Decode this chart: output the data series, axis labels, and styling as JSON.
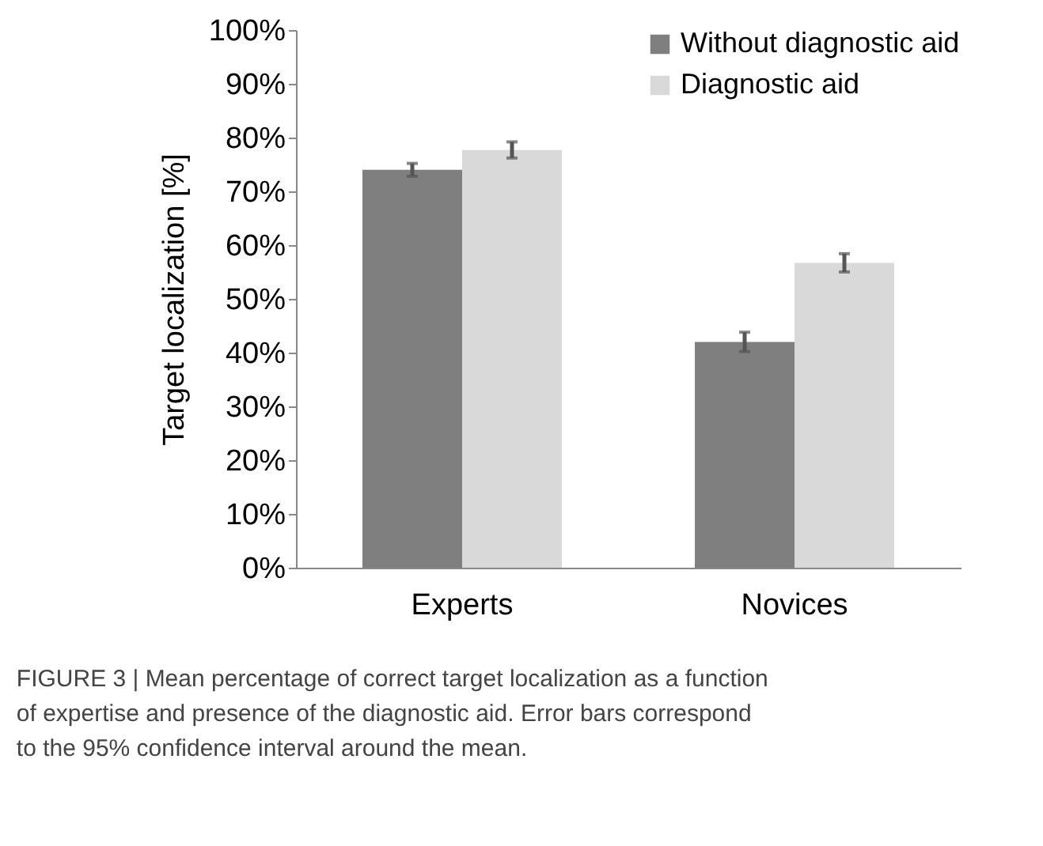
{
  "chart_data": {
    "type": "bar",
    "ylabel": "Target localization [%]",
    "categories": [
      "Experts",
      "Novices"
    ],
    "series": [
      {
        "name": "Without diagnostic aid",
        "color": "#7f7f7f",
        "values": [
          74.0,
          42.0
        ],
        "errors": [
          1.2,
          1.8
        ]
      },
      {
        "name": "Diagnostic aid",
        "color": "#d9d9d9",
        "values": [
          77.7,
          56.7
        ],
        "errors": [
          1.5,
          1.7
        ]
      }
    ],
    "ylim": [
      0,
      100
    ],
    "yticks": [
      {
        "value": 0,
        "label": "0%"
      },
      {
        "value": 10,
        "label": "10%"
      },
      {
        "value": 20,
        "label": "20%"
      },
      {
        "value": 30,
        "label": "30%"
      },
      {
        "value": 40,
        "label": "40%"
      },
      {
        "value": 50,
        "label": "50%"
      },
      {
        "value": 60,
        "label": "60%"
      },
      {
        "value": 70,
        "label": "70%"
      },
      {
        "value": 80,
        "label": "80%"
      },
      {
        "value": 90,
        "label": "90%"
      },
      {
        "value": 100,
        "label": "100%"
      }
    ],
    "grid": false,
    "legend": "top right",
    "annotations": [
      "FIGURE 3 | Mean percentage of correct target localization as a function of expertise and presence of the diagnostic aid. Error bars correspond to the 95% confidence interval around the mean."
    ]
  }
}
